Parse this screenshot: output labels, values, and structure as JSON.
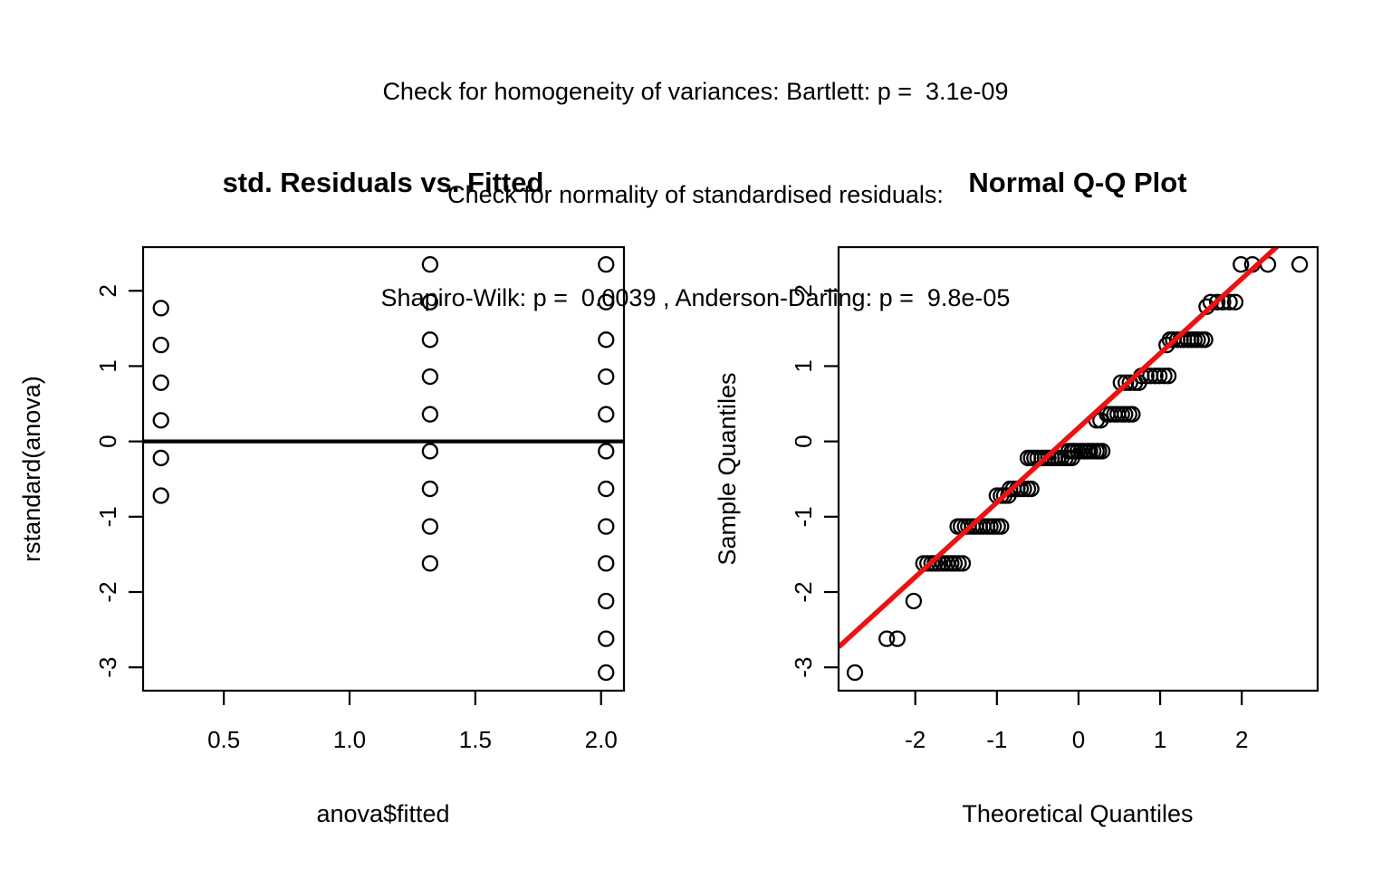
{
  "header": {
    "lines": [
      "Check for homogeneity of variances: Bartlett: p =  3.1e-09",
      "Check for normality of standardised residuals:",
      "Shapiro-Wilk: p =  0.0039 , Anderson-Darling: p =  9.8e-05"
    ],
    "tests": {
      "bartlett_p": "3.1e-09",
      "shapiro_wilk_p": "0.0039",
      "anderson_darling_p": "9.8e-05"
    }
  },
  "colors": {
    "foreground": "#000000",
    "background": "#ffffff",
    "qqline_red": "#ee1111"
  },
  "chart_data": [
    {
      "type": "scatter",
      "title": "std. Residuals vs. Fitted",
      "xlabel": "anova$fitted",
      "ylabel": "rstandard(anova)",
      "xlim": [
        0.179,
        2.091
      ],
      "ylim": [
        -3.31,
        2.58
      ],
      "grid": false,
      "xticks": [
        {
          "v": 0.5,
          "label": "0.5"
        },
        {
          "v": 1.0,
          "label": "1.0"
        },
        {
          "v": 1.5,
          "label": "1.5"
        },
        {
          "v": 2.0,
          "label": "2.0"
        }
      ],
      "yticks": [
        {
          "v": -3,
          "label": "-3"
        },
        {
          "v": -2,
          "label": "-2"
        },
        {
          "v": -1,
          "label": "-1"
        },
        {
          "v": 0,
          "label": "0"
        },
        {
          "v": 1,
          "label": "1"
        },
        {
          "v": 2,
          "label": "2"
        }
      ],
      "hline_y": 0,
      "groups": [
        {
          "fitted": 0.25,
          "residuals": [
            1.77,
            1.28,
            0.78,
            0.28,
            -0.22,
            -0.72
          ]
        },
        {
          "fitted": 1.32,
          "residuals": [
            2.35,
            1.85,
            1.35,
            0.86,
            0.36,
            -0.13,
            -0.63,
            -1.13,
            -1.62
          ]
        },
        {
          "fitted": 2.02,
          "residuals": [
            2.35,
            1.85,
            1.35,
            0.86,
            0.36,
            -0.13,
            -0.63,
            -1.13,
            -1.62,
            -2.12,
            -2.62,
            -3.07
          ]
        }
      ]
    },
    {
      "type": "scatter",
      "title": "Normal Q-Q Plot",
      "xlabel": "Theoretical Quantiles",
      "ylabel": "Sample Quantiles",
      "xlim": [
        -2.94,
        2.93
      ],
      "ylim": [
        -3.31,
        2.58
      ],
      "grid": false,
      "xticks": [
        {
          "v": -2,
          "label": "-2"
        },
        {
          "v": -1,
          "label": "-1"
        },
        {
          "v": 0,
          "label": "0"
        },
        {
          "v": 1,
          "label": "1"
        },
        {
          "v": 2,
          "label": "2"
        }
      ],
      "yticks": [
        {
          "v": -3,
          "label": "-3"
        },
        {
          "v": -2,
          "label": "-2"
        },
        {
          "v": -1,
          "label": "-1"
        },
        {
          "v": 0,
          "label": "0"
        },
        {
          "v": 1,
          "label": "1"
        },
        {
          "v": 2,
          "label": "2"
        }
      ],
      "qqline": {
        "slope": 0.99,
        "intercept": 0.18
      },
      "bands": [
        {
          "y": -3.07,
          "x": [
            -2.74
          ]
        },
        {
          "y": -2.62,
          "x": [
            -2.35,
            -2.22
          ]
        },
        {
          "y": -2.12,
          "x": [
            -2.02
          ]
        },
        {
          "y": -1.62,
          "x": [
            -1.9,
            -1.85,
            -1.8,
            -1.76,
            -1.71,
            -1.66,
            -1.61,
            -1.56,
            -1.52,
            -1.47,
            -1.42
          ]
        },
        {
          "y": -1.13,
          "x": [
            -1.48,
            -1.44,
            -1.39,
            -1.35,
            -1.3,
            -1.26,
            -1.21,
            -1.17,
            -1.12,
            -1.08,
            -1.04,
            -0.99,
            -0.95
          ]
        },
        {
          "y": -0.72,
          "x": [
            -1.0,
            -0.95,
            -0.91,
            -0.86
          ]
        },
        {
          "y": -0.63,
          "x": [
            -0.84,
            -0.8,
            -0.75,
            -0.71,
            -0.67,
            -0.62,
            -0.58
          ]
        },
        {
          "y": -0.22,
          "x": [
            -0.62,
            -0.58,
            -0.54,
            -0.5,
            -0.45,
            -0.41,
            -0.37,
            -0.33,
            -0.29,
            -0.25,
            -0.21,
            -0.16,
            -0.12,
            -0.08
          ]
        },
        {
          "y": -0.13,
          "x": [
            -0.12,
            -0.08,
            -0.05,
            -0.01,
            0.03,
            0.07,
            0.11,
            0.14,
            0.18,
            0.22,
            0.25,
            0.29
          ]
        },
        {
          "y": 0.28,
          "x": [
            0.22,
            0.27
          ]
        },
        {
          "y": 0.36,
          "x": [
            0.35,
            0.39,
            0.44,
            0.48,
            0.53,
            0.57,
            0.62,
            0.66
          ]
        },
        {
          "y": 0.78,
          "x": [
            0.52,
            0.58,
            0.63,
            0.69,
            0.74
          ]
        },
        {
          "y": 0.87,
          "x": [
            0.77,
            0.83,
            0.88,
            0.94,
            0.99,
            1.05,
            1.1
          ]
        },
        {
          "y": 1.28,
          "x": [
            1.08
          ]
        },
        {
          "y": 1.35,
          "x": [
            1.12,
            1.16,
            1.21,
            1.25,
            1.29,
            1.34,
            1.38,
            1.42,
            1.46,
            1.51,
            1.55
          ]
        },
        {
          "y": 1.79,
          "x": [
            1.57
          ]
        },
        {
          "y": 1.85,
          "x": [
            1.62,
            1.7,
            1.77,
            1.85,
            1.92
          ]
        },
        {
          "y": 2.35,
          "x": [
            1.99,
            2.13,
            2.32,
            2.71
          ]
        }
      ]
    }
  ]
}
